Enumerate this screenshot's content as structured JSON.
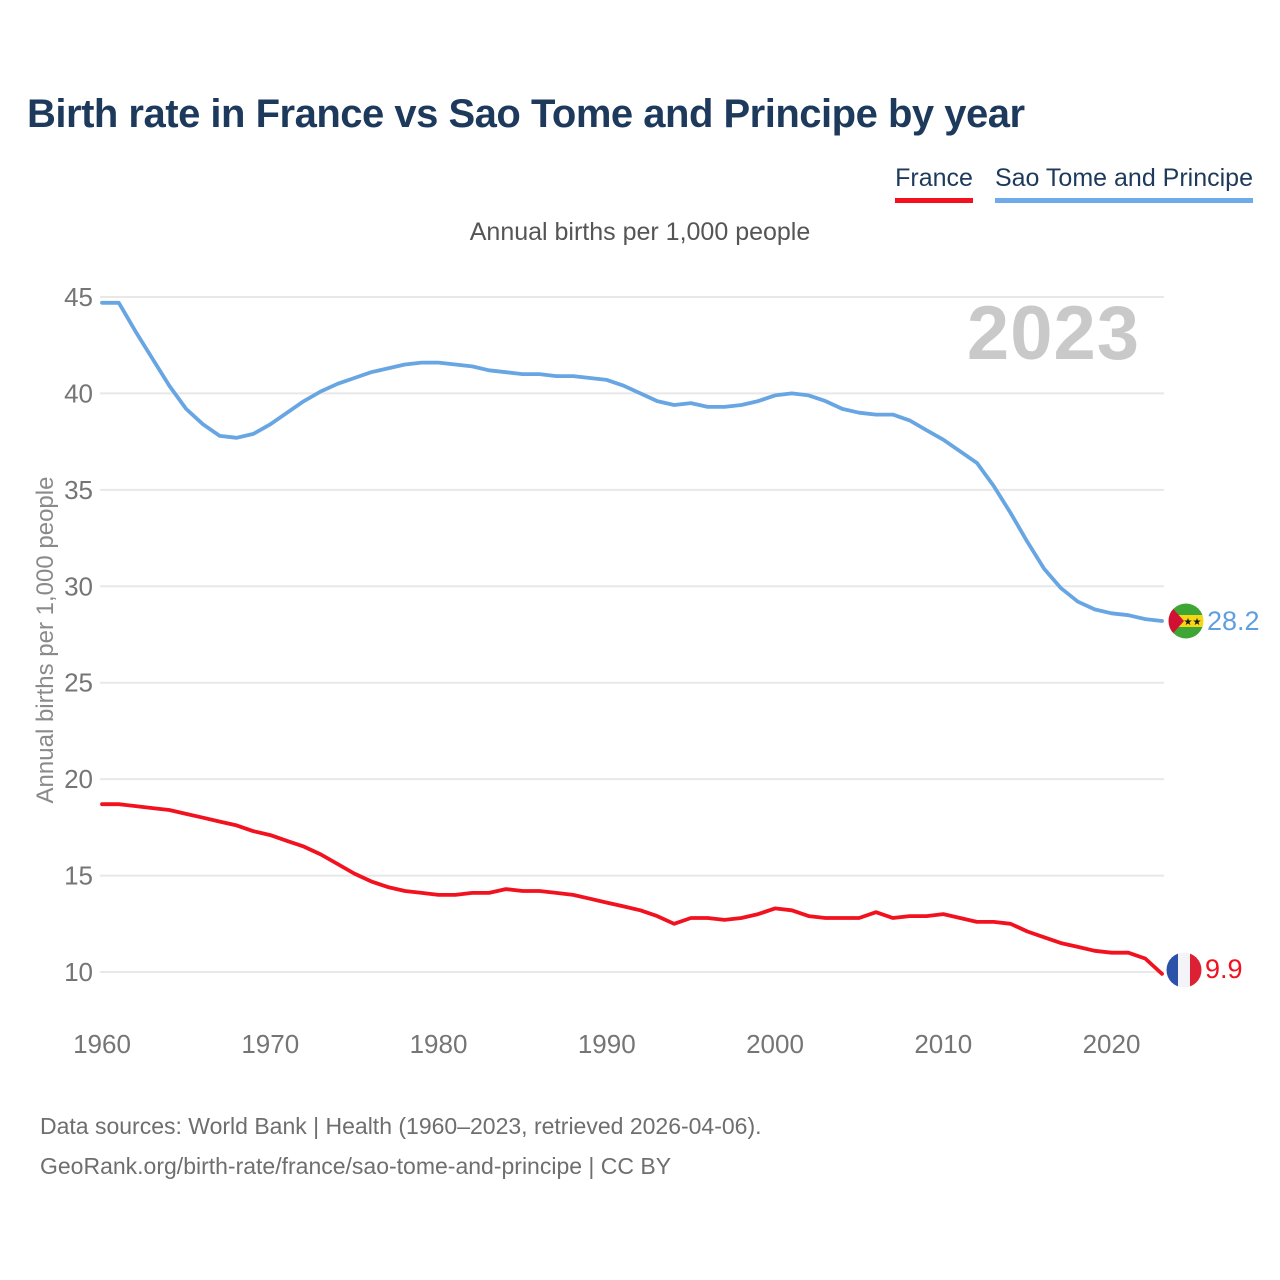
{
  "title": "Birth rate in France vs Sao Tome and Principe by year",
  "subtitle": "Annual births per 1,000 people",
  "y_axis_title": "Annual births per 1,000 people",
  "watermark": "2023",
  "legend": [
    {
      "label": "France",
      "color": "#f2121f"
    },
    {
      "label": "Sao Tome and Principe",
      "color": "#6fabe8"
    }
  ],
  "end_labels": {
    "sao_tome": "28.2",
    "france": "9.9"
  },
  "footer": {
    "line1": "Data sources: World Bank | Health (1960–2023, retrieved 2026-04-06).",
    "line2": "GeoRank.org/birth-rate/france/sao-tome-and-principe | CC BY"
  },
  "chart_data": {
    "type": "line",
    "title": "Birth rate in France vs Sao Tome and Principe by year",
    "subtitle": "Annual births per 1,000 people",
    "ylabel": "Annual births per 1,000 people",
    "xlabel": "",
    "grid": "horizontal",
    "legend_position": "top-right",
    "xlim": [
      1960,
      2023
    ],
    "ylim": [
      10,
      45
    ],
    "x_ticks": [
      1960,
      1970,
      1980,
      1990,
      2000,
      2010,
      2020
    ],
    "y_ticks": [
      45,
      40,
      35,
      30,
      25,
      20,
      15,
      10
    ],
    "years": [
      1960,
      1961,
      1962,
      1963,
      1964,
      1965,
      1966,
      1967,
      1968,
      1969,
      1970,
      1971,
      1972,
      1973,
      1974,
      1975,
      1976,
      1977,
      1978,
      1979,
      1980,
      1981,
      1982,
      1983,
      1984,
      1985,
      1986,
      1987,
      1988,
      1989,
      1990,
      1991,
      1992,
      1993,
      1994,
      1995,
      1996,
      1997,
      1998,
      1999,
      2000,
      2001,
      2002,
      2003,
      2004,
      2005,
      2006,
      2007,
      2008,
      2009,
      2010,
      2011,
      2012,
      2013,
      2014,
      2015,
      2016,
      2017,
      2018,
      2019,
      2020,
      2021,
      2022,
      2023
    ],
    "series": [
      {
        "name": "Sao Tome and Principe",
        "color": "#68a5e3",
        "end_label": "28.2",
        "values": [
          44.7,
          44.7,
          43.2,
          41.8,
          40.4,
          39.2,
          38.4,
          37.8,
          37.7,
          37.9,
          38.4,
          39.0,
          39.6,
          40.1,
          40.5,
          40.8,
          41.1,
          41.3,
          41.5,
          41.6,
          41.6,
          41.5,
          41.4,
          41.2,
          41.1,
          41.0,
          41.0,
          40.9,
          40.9,
          40.8,
          40.7,
          40.4,
          40.0,
          39.6,
          39.4,
          39.5,
          39.3,
          39.3,
          39.4,
          39.6,
          39.9,
          40.0,
          39.9,
          39.6,
          39.2,
          39.0,
          38.9,
          38.9,
          38.6,
          38.1,
          37.6,
          37.0,
          36.4,
          35.2,
          33.8,
          32.3,
          30.9,
          29.9,
          29.2,
          28.8,
          28.6,
          28.5,
          28.3,
          28.2
        ]
      },
      {
        "name": "France",
        "color": "#f2121f",
        "end_label": "9.9",
        "values": [
          18.7,
          18.7,
          18.6,
          18.5,
          18.4,
          18.2,
          18.0,
          17.8,
          17.6,
          17.3,
          17.1,
          16.8,
          16.5,
          16.1,
          15.6,
          15.1,
          14.7,
          14.4,
          14.2,
          14.1,
          14.0,
          14.0,
          14.1,
          14.1,
          14.3,
          14.2,
          14.2,
          14.1,
          14.0,
          13.8,
          13.6,
          13.4,
          13.2,
          12.9,
          12.5,
          12.8,
          12.8,
          12.7,
          12.8,
          13.0,
          13.3,
          13.2,
          12.9,
          12.8,
          12.8,
          12.8,
          13.1,
          12.8,
          12.9,
          12.9,
          13.0,
          12.8,
          12.6,
          12.6,
          12.5,
          12.1,
          11.8,
          11.5,
          11.3,
          11.1,
          11.0,
          11.0,
          10.7,
          9.9
        ]
      }
    ]
  }
}
